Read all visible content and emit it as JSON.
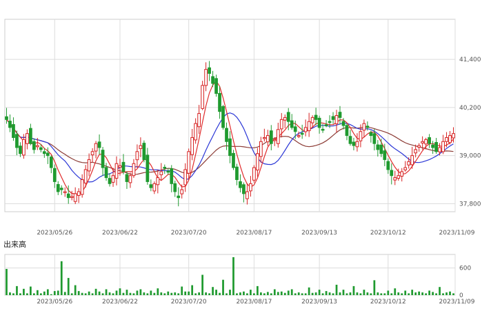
{
  "chart_data": [
    {
      "type": "candlestick",
      "title": "",
      "ylim": [
        37600,
        42400
      ],
      "y_ticks": [
        37800,
        39000,
        40200,
        41400
      ],
      "y_tick_labels": [
        "37,800",
        "39,000",
        "40,200",
        "41,400"
      ],
      "x_ticks": [
        {
          "index": 14,
          "label": "2023/05/26"
        },
        {
          "index": 33,
          "label": "2023/06/22"
        },
        {
          "index": 53,
          "label": "2023/07/20"
        },
        {
          "index": 72,
          "label": "2023/08/17"
        },
        {
          "index": 91,
          "label": "2023/09/13"
        },
        {
          "index": 111,
          "label": "2023/10/12"
        },
        {
          "index": 131,
          "label": "2023/11/09"
        }
      ],
      "grid": true,
      "colors": {
        "up": "#d61f1f",
        "down": "#1f9a2f",
        "ma_short": "#e02a2a",
        "ma_mid": "#2a36d6",
        "ma_long": "#8b3a34",
        "grid": "#dcdcdc"
      },
      "closes": [
        39900,
        39700,
        39450,
        39200,
        39050,
        39400,
        39550,
        39300,
        39150,
        39250,
        39150,
        39050,
        39000,
        38700,
        38350,
        38100,
        38150,
        38100,
        37950,
        37980,
        38050,
        38100,
        38400,
        38650,
        38900,
        39100,
        39300,
        39200,
        38700,
        38450,
        38300,
        38500,
        38800,
        38750,
        38600,
        38350,
        38500,
        38800,
        39100,
        39250,
        38900,
        38350,
        38200,
        38300,
        38450,
        38600,
        38700,
        38600,
        38300,
        38100,
        37950,
        38150,
        38650,
        39100,
        39450,
        39800,
        40050,
        40750,
        41150,
        41050,
        40800,
        40550,
        40100,
        39700,
        39350,
        39000,
        38700,
        38400,
        38200,
        38050,
        38100,
        38300,
        38700,
        39050,
        39350,
        39450,
        39500,
        39300,
        39400,
        39650,
        39900,
        39950,
        39850,
        39700,
        39600,
        39500,
        39550,
        39700,
        39850,
        39950,
        39900,
        39700,
        39650,
        39750,
        39850,
        39900,
        40000,
        39950,
        39750,
        39500,
        39300,
        39250,
        39350,
        39600,
        39800,
        39700,
        39500,
        39300,
        39150,
        39050,
        38900,
        38650,
        38500,
        38450,
        38500,
        38600,
        38700,
        38850,
        39000,
        39150,
        39250,
        39350,
        39400,
        39300,
        39200,
        39100,
        39200,
        39350,
        39450,
        39500,
        39550
      ]
    },
    {
      "type": "bar",
      "title": "出来高",
      "ylim": [
        0,
        900
      ],
      "y_ticks": [
        0,
        600
      ],
      "y_tick_labels": [
        "0",
        "600"
      ],
      "values": [
        580,
        60,
        40,
        200,
        40,
        140,
        40,
        190,
        40,
        110,
        40,
        80,
        130,
        20,
        90,
        100,
        750,
        70,
        380,
        40,
        220,
        90,
        50,
        40,
        80,
        40,
        140,
        80,
        40,
        130,
        60,
        40,
        100,
        150,
        50,
        120,
        50,
        40,
        100,
        130,
        60,
        40,
        100,
        50,
        150,
        60,
        40,
        80,
        50,
        60,
        40,
        190,
        80,
        80,
        220,
        40,
        60,
        450,
        60,
        40,
        180,
        120,
        50,
        340,
        40,
        120,
        840,
        40,
        60,
        80,
        40,
        120,
        40,
        200,
        60,
        40,
        70,
        40,
        130,
        70,
        80,
        50,
        100,
        130,
        40,
        60,
        40,
        40,
        170,
        50,
        60,
        120,
        40,
        90,
        60,
        40,
        230,
        60,
        120,
        40,
        60,
        200,
        60,
        40,
        120,
        60,
        40,
        330,
        60,
        40,
        40,
        100,
        40,
        150,
        60,
        40,
        100,
        40,
        120,
        60,
        80,
        60,
        40,
        100,
        70,
        40,
        180,
        40,
        60,
        80,
        40
      ]
    }
  ],
  "panels": {
    "volume_label": "出来高"
  }
}
